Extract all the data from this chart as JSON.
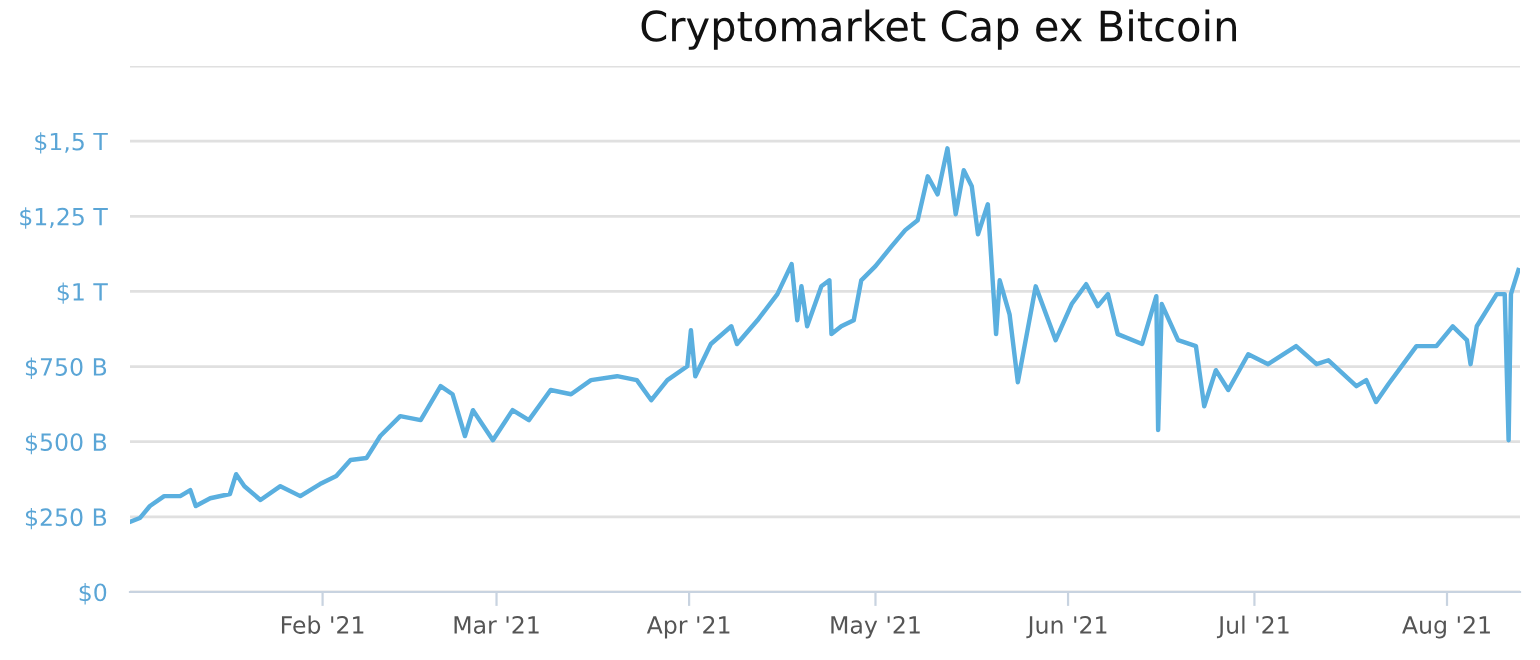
{
  "chart_data": {
    "type": "line",
    "title": "Cryptomarket Cap ex Bitcoin",
    "x": [
      "2021-01-01",
      "2021-01-02T14:00",
      "2021-01-04T05:00",
      "2021-01-06T12:00",
      "2021-01-09T02:00",
      "2021-01-10T17:00",
      "2021-01-11T14:00",
      "2021-01-13T22:00",
      "2021-01-17T02:00",
      "2021-01-18T02:00",
      "2021-01-19T10:00",
      "2021-01-22",
      "2021-01-25T05:00",
      "2021-01-28T10:00",
      "2021-01-31T14:00",
      "2021-02-03T05:00",
      "2021-02-05T12:00",
      "2021-02-08T02:00",
      "2021-02-10T07:00",
      "2021-02-13T12:00",
      "2021-02-16T19:00",
      "2021-02-20",
      "2021-02-21T22:00",
      "2021-02-23T22:00",
      "2021-02-25T05:00",
      "2021-02-28T10:00",
      "2021-03-03T14:00",
      "2021-03-06T05:00",
      "2021-03-09T17:00",
      "2021-03-13",
      "2021-03-16T05:00",
      "2021-03-20T10:00",
      "2021-03-23T14:00",
      "2021-03-25T22:00",
      "2021-03-28T12:00",
      "2021-03-31T17:00",
      "2021-04-01T07:00",
      "2021-04-02",
      "2021-04-04T12:00",
      "2021-04-07T19:00",
      "2021-04-08T17:00",
      "2021-04-12",
      "2021-04-15T05:00",
      "2021-04-17T12:00",
      "2021-04-18T10:00",
      "2021-04-19T02:00",
      "2021-04-20",
      "2021-04-22T07:00",
      "2021-04-23T14:00",
      "2021-04-23T22:00",
      "2021-04-25T12:00",
      "2021-04-27T12:00",
      "2021-04-28T17:00",
      "2021-05-01",
      "2021-05-03T14:00",
      "2021-05-05T19:00",
      "2021-05-07T19:00",
      "2021-05-09T10:00",
      "2021-05-11",
      "2021-05-12T14:00",
      "2021-05-13T22:00",
      "2021-05-15T05:00",
      "2021-05-16T12:00",
      "2021-05-17T12:00",
      "2021-05-19T02:00",
      "2021-05-20T10:00",
      "2021-05-21",
      "2021-05-22T14:00",
      "2021-05-23T22:00",
      "2021-05-26T19:00",
      "2021-05-30",
      "2021-06-01T14:00",
      "2021-06-03T22:00",
      "2021-06-05T19:00",
      "2021-06-07T10:00",
      "2021-06-09",
      "2021-06-12T22:00",
      "2021-06-15T05:00",
      "2021-06-15T12:00",
      "2021-06-16T02:00",
      "2021-06-18T17:00",
      "2021-06-21T14:00",
      "2021-06-22T22:00",
      "2021-06-24T19:00",
      "2021-06-26T19:00",
      "2021-06-30",
      "2021-07-03T05:00",
      "2021-07-07T17:00",
      "2021-07-11",
      "2021-07-12T22:00",
      "2021-07-17T10:00",
      "2021-07-19",
      "2021-07-20T14:00",
      "2021-07-22T14:00",
      "2021-07-27T02:00",
      "2021-07-30T07:00",
      "2021-08-01T22:00",
      "2021-08-04T05:00",
      "2021-08-04T19:00",
      "2021-08-05T19:00",
      "2021-08-09",
      "2021-08-10T07:00",
      "2021-08-10T22:00",
      "2021-08-11T07:00",
      "2021-08-12T12:00"
    ],
    "series": [
      {
        "color": "#5aafdf",
        "values": [
          233000000000.0,
          246000000000.0,
          286000000000.0,
          319000000000.0,
          319000000000.0,
          339000000000.0,
          286000000000.0,
          312000000000.0,
          326000000000.0,
          392000000000.0,
          352000000000.0,
          306000000000.0,
          352000000000.0,
          319000000000.0,
          359000000000.0,
          386000000000.0,
          439000000000.0,
          446000000000.0,
          519000000000.0,
          585000000000.0,
          572000000000.0,
          685000000000.0,
          658000000000.0,
          519000000000.0,
          605000000000.0,
          505000000000.0,
          605000000000.0,
          572000000000.0,
          672000000000.0,
          658000000000.0,
          705000000000.0,
          718000000000.0,
          705000000000.0,
          638000000000.0,
          705000000000.0,
          751000000000.0,
          871000000000.0,
          718000000000.0,
          825000000000.0,
          884000000000.0,
          825000000000.0,
          904000000000.0,
          991000000000.0,
          1091000000000.0,
          904000000000.0,
          1017000000000.0,
          884000000000.0,
          1017000000000.0,
          1037000000000.0,
          858000000000.0,
          884000000000.0,
          904000000000.0,
          1037000000000.0,
          1084000000000.0,
          1150000000000.0,
          1204000000000.0,
          1237000000000.0,
          1383000000000.0,
          1323000000000.0,
          1476000000000.0,
          1257000000000.0,
          1403000000000.0,
          1350000000000.0,
          1190000000000.0,
          1290000000000.0,
          858000000000.0,
          1037000000000.0,
          924000000000.0,
          698000000000.0,
          1017000000000.0,
          838000000000.0,
          958000000000.0,
          1024000000000.0,
          951000000000.0,
          991000000000.0,
          858000000000.0,
          825000000000.0,
          984000000000.0,
          539000000000.0,
          958000000000.0,
          838000000000.0,
          818000000000.0,
          618000000000.0,
          738000000000.0,
          672000000000.0,
          791000000000.0,
          758000000000.0,
          818000000000.0,
          758000000000.0,
          771000000000.0,
          685000000000.0,
          705000000000.0,
          632000000000.0,
          692000000000.0,
          818000000000.0,
          818000000000.0,
          884000000000.0,
          838000000000.0,
          758000000000.0,
          884000000000.0,
          991000000000.0,
          991000000000.0,
          505000000000.0,
          991000000000.0,
          1071000000000.0
        ]
      }
    ],
    "xlim": [
      "2021-01-01",
      "2021-08-12T18:00"
    ],
    "xticks": [
      {
        "value": "2021-02-01",
        "label": "Feb '21"
      },
      {
        "value": "2021-03-01",
        "label": "Mar '21"
      },
      {
        "value": "2021-04-01",
        "label": "Apr '21"
      },
      {
        "value": "2021-05-01",
        "label": "May '21"
      },
      {
        "value": "2021-06-01",
        "label": "Jun '21"
      },
      {
        "value": "2021-07-01",
        "label": "Jul '21"
      },
      {
        "value": "2021-08-01",
        "label": "Aug '21"
      }
    ],
    "ylim": [
      0,
      1750000000000.0
    ],
    "yticks": [
      {
        "value": 0,
        "label": "$0"
      },
      {
        "value": 250000000000.0,
        "label": "$250 B"
      },
      {
        "value": 500000000000.0,
        "label": "$500 B"
      },
      {
        "value": 750000000000.0,
        "label": "$750 B"
      },
      {
        "value": 1000000000000.0,
        "label": "$1 T"
      },
      {
        "value": 1250000000000.0,
        "label": "$1,25 T"
      },
      {
        "value": 1500000000000.0,
        "label": "$1,5 T"
      },
      {
        "value": 1750000000000.0,
        "label": null
      }
    ],
    "grid": "y",
    "marker": "none",
    "line_style": "solid"
  }
}
